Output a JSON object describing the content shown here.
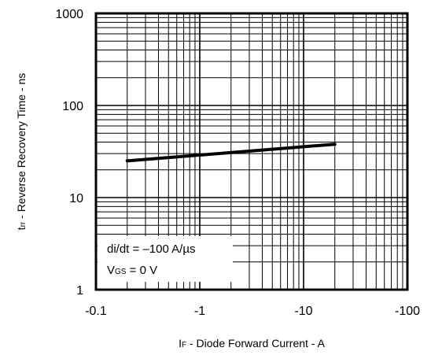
{
  "chart_data": {
    "type": "line",
    "x_scale": "log",
    "y_scale": "log",
    "xlim": [
      -0.1,
      -100
    ],
    "ylim": [
      1,
      1000
    ],
    "grid": true,
    "x_ticks": [
      "-0.1",
      "-1",
      "-10",
      "-100"
    ],
    "y_ticks": [
      "1",
      "10",
      "100",
      "1000"
    ],
    "xlabel": {
      "main": "I",
      "sub": "F",
      "rest": " - Diode Forward Current - A"
    },
    "ylabel": {
      "main": "t",
      "sub": "rr",
      "rest": " - Reverse Recovery Time - ns"
    },
    "annotations": [
      {
        "text": "di/dt = –100 A/µs"
      },
      {
        "main": "V",
        "sub": "GS",
        "rest": " = 0 V"
      }
    ],
    "series": [
      {
        "x": [
          -0.2,
          -20
        ],
        "y": [
          25,
          38
        ]
      }
    ],
    "colors": {
      "line": "#000000",
      "grid": "#000000"
    }
  }
}
